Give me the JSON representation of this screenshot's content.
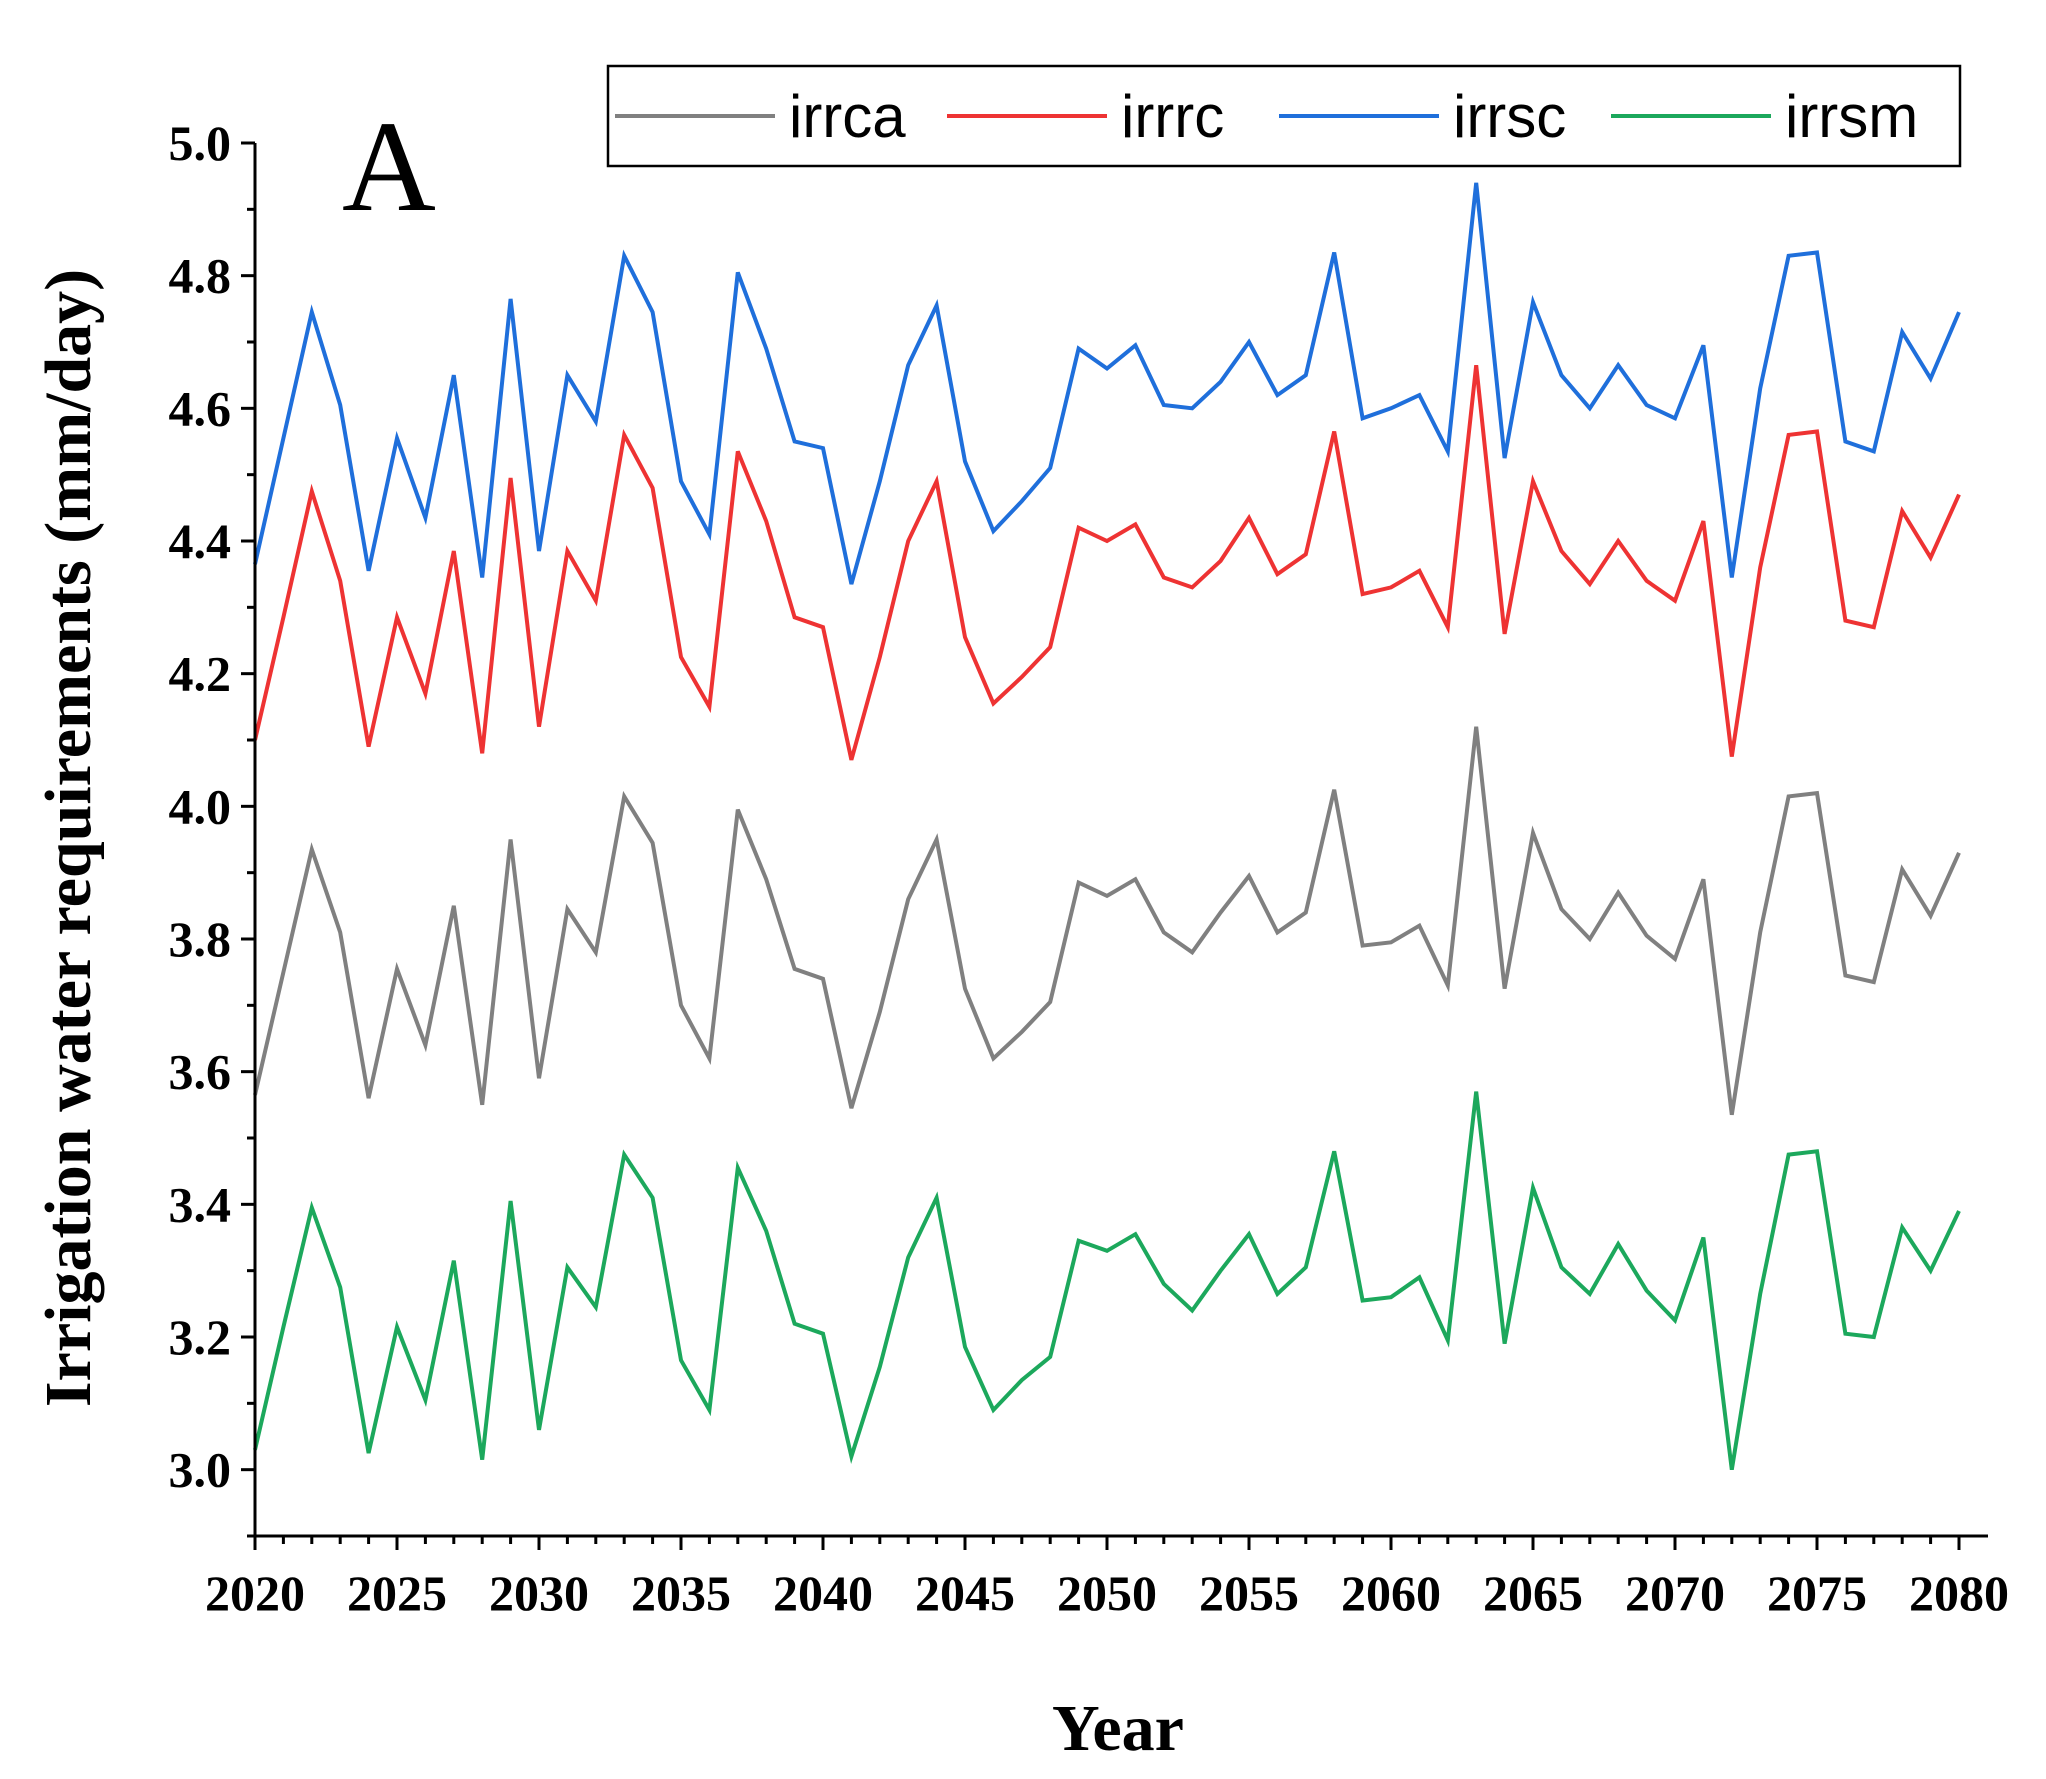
{
  "chart_data": {
    "type": "line",
    "panel_label": "A",
    "title": "",
    "xlabel": "Year",
    "ylabel": "Irrigation water requirements (mm/day)",
    "xlim": [
      2020,
      2081
    ],
    "ylim": [
      2.9,
      5.0
    ],
    "xticks": [
      "2020",
      "2025",
      "2030",
      "2035",
      "2040",
      "2045",
      "2050",
      "2055",
      "2060",
      "2065",
      "2070",
      "2075",
      "2080"
    ],
    "yticks": [
      "3.0",
      "3.2",
      "3.4",
      "3.6",
      "3.8",
      "4.0",
      "4.2",
      "4.4",
      "4.6",
      "4.8",
      "5.0"
    ],
    "legend_position": "top-right",
    "x": [
      2020,
      2021,
      2022,
      2023,
      2024,
      2025,
      2026,
      2027,
      2028,
      2029,
      2030,
      2031,
      2032,
      2033,
      2034,
      2035,
      2036,
      2037,
      2038,
      2039,
      2040,
      2041,
      2042,
      2043,
      2044,
      2045,
      2046,
      2047,
      2048,
      2049,
      2050,
      2051,
      2052,
      2053,
      2054,
      2055,
      2056,
      2057,
      2058,
      2059,
      2060,
      2061,
      2062,
      2063,
      2064,
      2065,
      2066,
      2067,
      2068,
      2069,
      2070,
      2071,
      2072,
      2073,
      2074,
      2075,
      2076,
      2077,
      2078,
      2079,
      2080
    ],
    "series": [
      {
        "name": "irrca",
        "color": "#808080",
        "values": [
          3.565,
          3.75,
          3.935,
          3.81,
          3.56,
          3.755,
          3.64,
          3.85,
          3.55,
          3.95,
          3.59,
          3.845,
          3.78,
          4.015,
          3.945,
          3.7,
          3.62,
          3.995,
          3.89,
          3.755,
          3.74,
          3.545,
          3.69,
          3.86,
          3.95,
          3.725,
          3.62,
          3.66,
          3.705,
          3.885,
          3.865,
          3.89,
          3.81,
          3.78,
          3.84,
          3.895,
          3.81,
          3.84,
          4.025,
          3.79,
          3.795,
          3.82,
          3.73,
          4.12,
          3.725,
          3.96,
          3.845,
          3.8,
          3.87,
          3.805,
          3.77,
          3.89,
          3.535,
          3.81,
          4.015,
          4.02,
          3.745,
          3.735,
          3.905,
          3.835,
          3.93
        ]
      },
      {
        "name": "irrrc",
        "color": "#ee3333",
        "values": [
          4.1,
          4.285,
          4.475,
          4.34,
          4.09,
          4.285,
          4.17,
          4.385,
          4.08,
          4.495,
          4.12,
          4.385,
          4.31,
          4.56,
          4.48,
          4.225,
          4.15,
          4.535,
          4.43,
          4.285,
          4.27,
          4.07,
          4.225,
          4.4,
          4.49,
          4.255,
          4.155,
          4.195,
          4.24,
          4.42,
          4.4,
          4.425,
          4.345,
          4.33,
          4.37,
          4.435,
          4.35,
          4.38,
          4.565,
          4.32,
          4.33,
          4.355,
          4.27,
          4.665,
          4.26,
          4.49,
          4.385,
          4.335,
          4.4,
          4.34,
          4.31,
          4.43,
          4.075,
          4.36,
          4.56,
          4.565,
          4.28,
          4.27,
          4.445,
          4.375,
          4.47
        ]
      },
      {
        "name": "irrsc",
        "color": "#1f6fdb",
        "values": [
          4.365,
          4.555,
          4.745,
          4.605,
          4.355,
          4.555,
          4.435,
          4.65,
          4.345,
          4.765,
          4.385,
          4.65,
          4.58,
          4.83,
          4.745,
          4.49,
          4.41,
          4.805,
          4.69,
          4.55,
          4.54,
          4.335,
          4.49,
          4.665,
          4.755,
          4.52,
          4.415,
          4.46,
          4.51,
          4.69,
          4.66,
          4.695,
          4.605,
          4.6,
          4.64,
          4.7,
          4.62,
          4.65,
          4.835,
          4.585,
          4.6,
          4.62,
          4.535,
          4.94,
          4.525,
          4.76,
          4.65,
          4.6,
          4.665,
          4.605,
          4.585,
          4.695,
          4.345,
          4.63,
          4.83,
          4.835,
          4.55,
          4.535,
          4.715,
          4.645,
          4.745
        ]
      },
      {
        "name": "irrsm",
        "color": "#1ca85c",
        "values": [
          3.03,
          3.215,
          3.395,
          3.275,
          3.025,
          3.215,
          3.105,
          3.315,
          3.015,
          3.405,
          3.06,
          3.305,
          3.245,
          3.475,
          3.41,
          3.165,
          3.09,
          3.455,
          3.36,
          3.22,
          3.205,
          3.02,
          3.155,
          3.32,
          3.41,
          3.185,
          3.09,
          3.135,
          3.17,
          3.345,
          3.33,
          3.355,
          3.28,
          3.24,
          3.3,
          3.355,
          3.265,
          3.305,
          3.48,
          3.255,
          3.26,
          3.29,
          3.195,
          3.57,
          3.19,
          3.425,
          3.305,
          3.265,
          3.34,
          3.27,
          3.225,
          3.35,
          3.0,
          3.265,
          3.475,
          3.48,
          3.205,
          3.2,
          3.365,
          3.3,
          3.39
        ]
      }
    ]
  }
}
